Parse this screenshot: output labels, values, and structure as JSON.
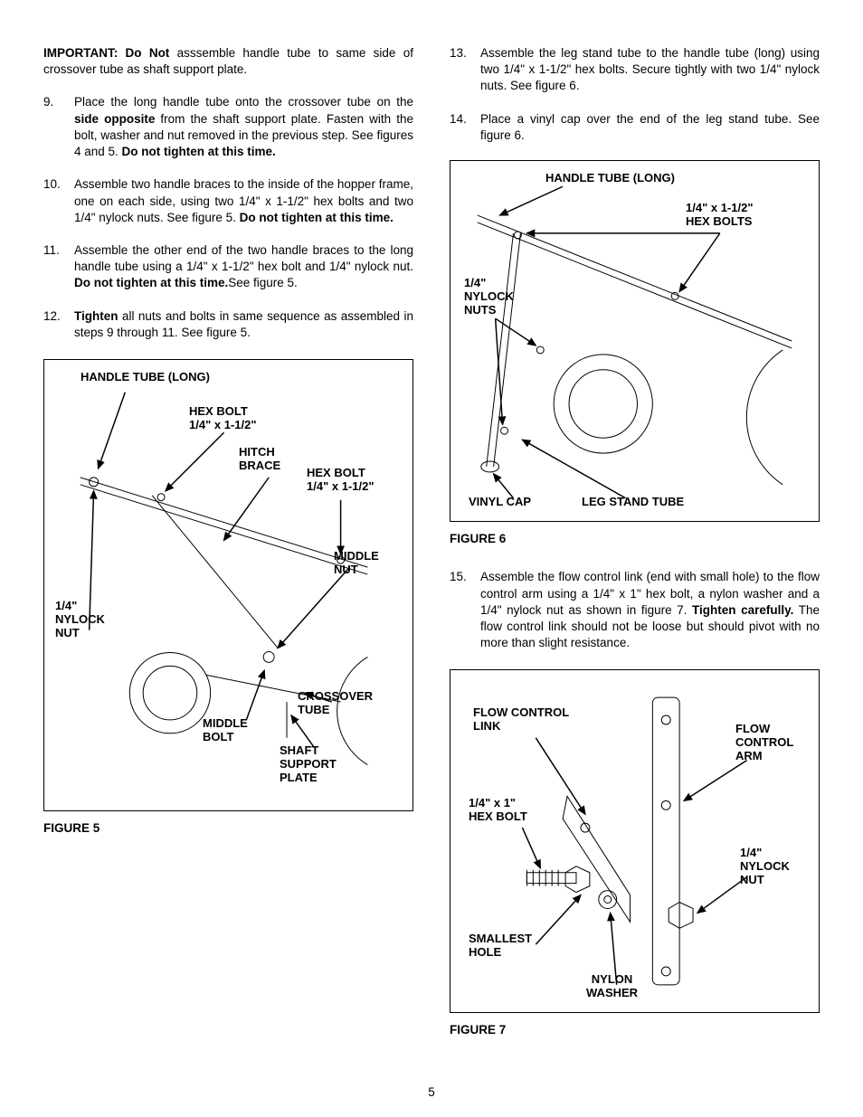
{
  "page_number": "5",
  "important": {
    "lead": "IMPORTANT:  Do Not",
    "rest": " asssemble handle tube to same side of crossover tube as shaft support plate."
  },
  "left_list": [
    {
      "n": "9.",
      "html": "Place the long handle tube onto the crossover tube on the <b>side opposite</b> from the shaft support plate.  Fasten with the bolt, washer and nut removed in the previous step.  See figures 4 and 5.  <b>Do not tighten at this time.</b>"
    },
    {
      "n": "10.",
      "html": "Assemble two handle braces to the inside of the hopper frame, one on each side, using two 1/4\" x   1-1/2\" hex bolts and two 1/4\" nylock nuts. See figure 5.  <b>Do not tighten at this time.</b>"
    },
    {
      "n": "11.",
      "html": "Assemble the other end of the two handle braces to the long handle tube using a 1/4\" x 1-1/2\" hex bolt and 1/4\" nylock nut. <b>Do not tighten at this time.</b>See figure 5."
    },
    {
      "n": "12.",
      "html": "<b>Tighten</b> all nuts and bolts in same sequence as assembled in steps 9 through 11.  See figure 5."
    }
  ],
  "right_list_a": [
    {
      "n": "13.",
      "html": "Assemble the leg stand tube to the handle tube (long) using two 1/4\" x 1-1/2\" hex bolts.  Secure tightly with two 1/4\" nylock nuts.  See figure 6."
    },
    {
      "n": "14.",
      "html": "Place a vinyl cap over the end of the leg stand tube.  See figure 6."
    }
  ],
  "right_list_b": [
    {
      "n": "15.",
      "html": "Assemble the flow control link (end with small hole) to the flow control arm using a 1/4\" x 1\" hex bolt, a nylon washer and a 1/4\" nylock nut as shown in figure 7. <b>Tighten carefully.</b> The flow control link should not be loose but should pivot with no more than slight resistance."
    }
  ],
  "fig5": {
    "caption": "FIGURE 5",
    "labels": {
      "handle_tube": "HANDLE TUBE (LONG)",
      "hex_bolt_1": "HEX BOLT\n1/4\" x 1-1/2\"",
      "hitch_brace": "HITCH\nBRACE",
      "hex_bolt_2": "HEX BOLT\n1/4\" x 1-1/2\"",
      "middle_nut": "MIDDLE\nNUT",
      "nylock_nut": "1/4\"\nNYLOCK\nNUT",
      "middle_bolt": "MIDDLE\nBOLT",
      "crossover_tube": "CROSSOVER\nTUBE",
      "shaft_support": "SHAFT\nSUPPORT\nPLATE"
    }
  },
  "fig6": {
    "caption": "FIGURE 6",
    "labels": {
      "handle_tube": "HANDLE TUBE (LONG)",
      "hex_bolts": "1/4\" x 1-1/2\"\nHEX BOLTS",
      "nylock_nuts": "1/4\"\nNYLOCK\nNUTS",
      "vinyl_cap": "VINYL CAP",
      "leg_stand": "LEG STAND TUBE"
    }
  },
  "fig7": {
    "caption": "FIGURE 7",
    "labels": {
      "flow_link": "FLOW CONTROL\nLINK",
      "flow_arm": "FLOW\nCONTROL\nARM",
      "hex_bolt": "1/4\" x 1\"\nHEX BOLT",
      "nylock_nut": "1/4\"\nNYLOCK\nNUT",
      "smallest_hole": "SMALLEST\nHOLE",
      "nylon_washer": "NYLON\nWASHER"
    }
  }
}
